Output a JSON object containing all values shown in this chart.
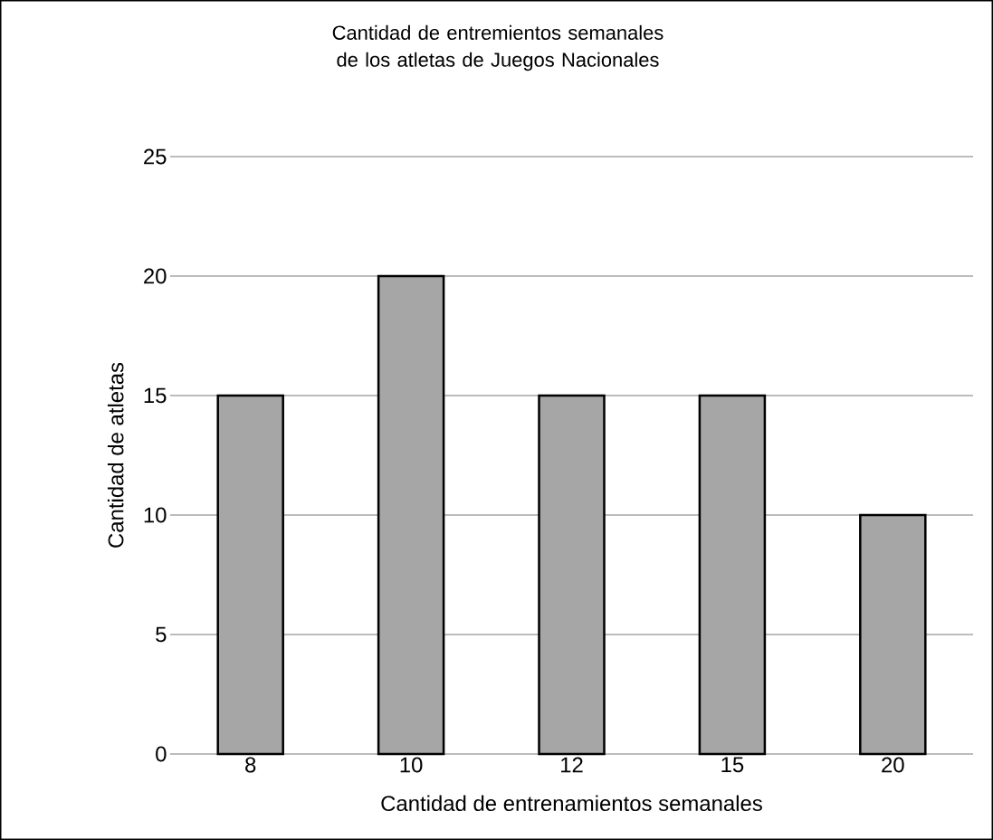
{
  "chart_data": {
    "type": "bar",
    "title": "Cantidad de entremientos semanales de los atletas de Juegos Nacionales",
    "xlabel": "Cantidad de entrenamientos semanales",
    "ylabel": "Cantidad de atletas",
    "categories": [
      "8",
      "10",
      "12",
      "15",
      "20"
    ],
    "values": [
      15,
      20,
      15,
      15,
      10
    ],
    "color": "#a6a6a6",
    "ylim": [
      0,
      25
    ],
    "yticks": [
      0,
      5,
      10,
      15,
      20,
      25
    ],
    "grid": "y"
  }
}
